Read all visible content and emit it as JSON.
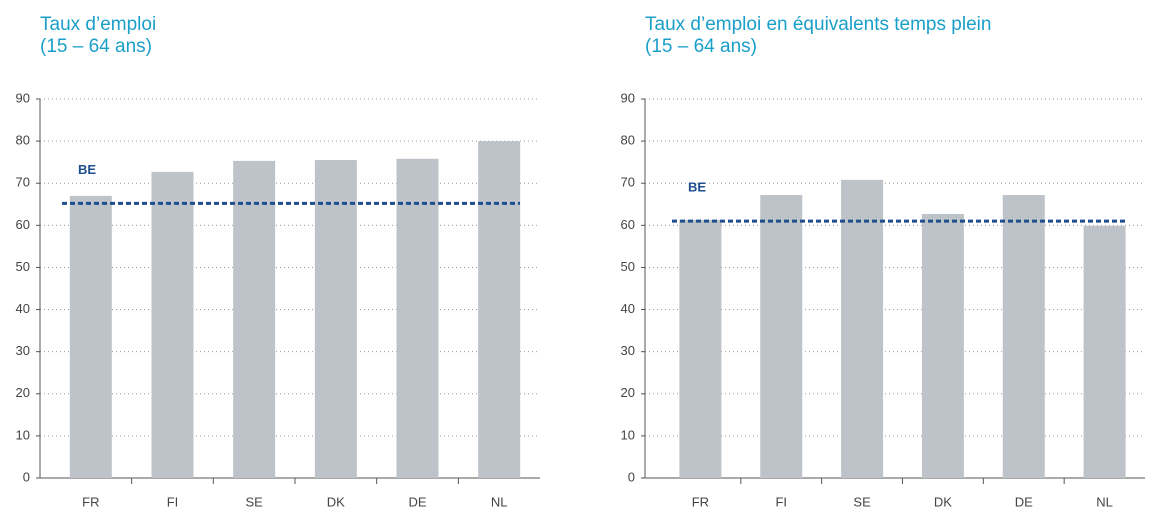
{
  "chart_data": [
    {
      "type": "bar",
      "title": "Taux d’emploi",
      "subtitle": "(15 – 64 ans)",
      "categories": [
        "FR",
        "FI",
        "SE",
        "DK",
        "DE",
        "NL"
      ],
      "values": [
        67.0,
        72.7,
        75.3,
        75.5,
        75.8,
        80.0
      ],
      "color": "#bdc3c8",
      "reference": {
        "label": "BE",
        "value": 65.2,
        "color": "#1f4e8c"
      },
      "ylim": [
        0,
        90
      ],
      "yticks": [
        0,
        10,
        20,
        30,
        40,
        50,
        60,
        70,
        80,
        90
      ],
      "grid": true
    },
    {
      "type": "bar",
      "title": "Taux d’emploi en équivalents temps plein",
      "subtitle": "(15 – 64 ans)",
      "categories": [
        "FR",
        "FI",
        "SE",
        "DK",
        "DE",
        "NL"
      ],
      "values": [
        61.3,
        67.2,
        70.8,
        62.7,
        67.2,
        59.9
      ],
      "color": "#bdc3c8",
      "reference": {
        "label": "BE",
        "value": 61.0,
        "color": "#1f4e8c"
      },
      "ylim": [
        0,
        90
      ],
      "yticks": [
        0,
        10,
        20,
        30,
        40,
        50,
        60,
        70,
        80,
        90
      ],
      "grid": true
    }
  ]
}
